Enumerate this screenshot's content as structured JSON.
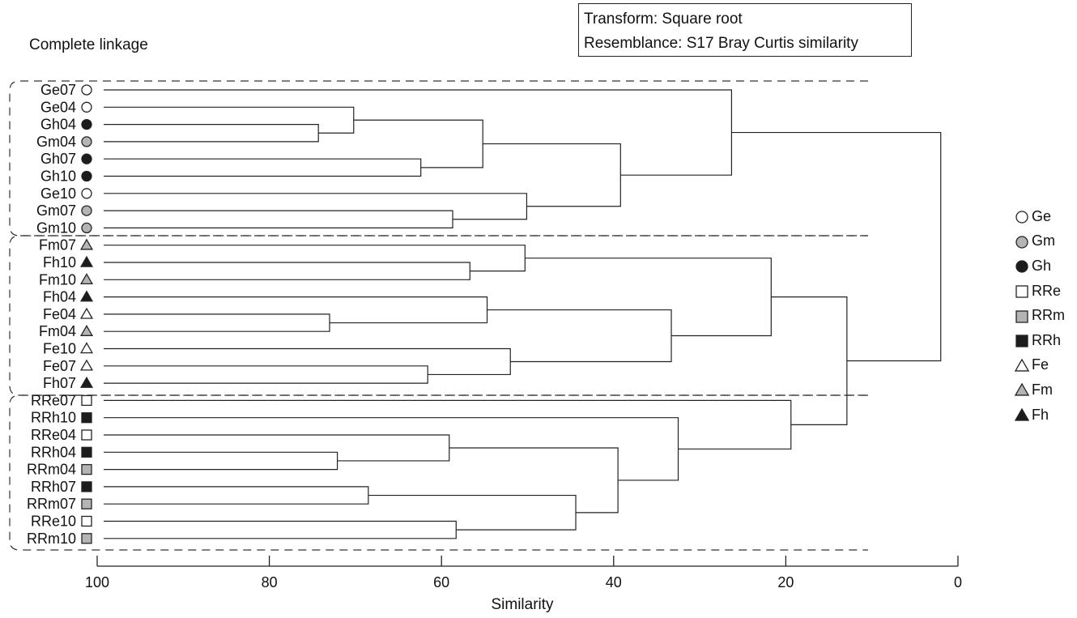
{
  "info_box": {
    "line1": "Transform: Square root",
    "line2": "Resemblance: S17 Bray Curtis similarity"
  },
  "method_label": "Complete linkage",
  "colors": {
    "open": "#ffffff",
    "gray": "#b4b4b4",
    "black": "#1c1c1c",
    "line": "#222222"
  },
  "legend": [
    {
      "label": "Ge",
      "shape": "circle",
      "fill": "open"
    },
    {
      "label": "Gm",
      "shape": "circle",
      "fill": "gray"
    },
    {
      "label": "Gh",
      "shape": "circle",
      "fill": "black"
    },
    {
      "label": "RRe",
      "shape": "square",
      "fill": "open"
    },
    {
      "label": "RRm",
      "shape": "square",
      "fill": "gray"
    },
    {
      "label": "RRh",
      "shape": "square",
      "fill": "black"
    },
    {
      "label": "Fe",
      "shape": "triangle",
      "fill": "open"
    },
    {
      "label": "Fm",
      "shape": "triangle",
      "fill": "gray"
    },
    {
      "label": "Fh",
      "shape": "triangle",
      "fill": "black"
    }
  ],
  "chart_data": {
    "type": "dendrogram",
    "xlabel": "Similarity",
    "xlim": [
      100,
      0
    ],
    "xticks": [
      100,
      80,
      60,
      40,
      20,
      0
    ],
    "leaves": [
      {
        "label": "Ge07",
        "shape": "circle",
        "fill": "open"
      },
      {
        "label": "Ge04",
        "shape": "circle",
        "fill": "open"
      },
      {
        "label": "Gh04",
        "shape": "circle",
        "fill": "black"
      },
      {
        "label": "Gm04",
        "shape": "circle",
        "fill": "gray"
      },
      {
        "label": "Gh07",
        "shape": "circle",
        "fill": "black"
      },
      {
        "label": "Gh10",
        "shape": "circle",
        "fill": "black"
      },
      {
        "label": "Ge10",
        "shape": "circle",
        "fill": "open"
      },
      {
        "label": "Gm07",
        "shape": "circle",
        "fill": "gray"
      },
      {
        "label": "Gm10",
        "shape": "circle",
        "fill": "gray"
      },
      {
        "label": "Fm07",
        "shape": "triangle",
        "fill": "gray"
      },
      {
        "label": "Fh10",
        "shape": "triangle",
        "fill": "black"
      },
      {
        "label": "Fm10",
        "shape": "triangle",
        "fill": "gray"
      },
      {
        "label": "Fh04",
        "shape": "triangle",
        "fill": "black"
      },
      {
        "label": "Fe04",
        "shape": "triangle",
        "fill": "open"
      },
      {
        "label": "Fm04",
        "shape": "triangle",
        "fill": "gray"
      },
      {
        "label": "Fe10",
        "shape": "triangle",
        "fill": "open"
      },
      {
        "label": "Fe07",
        "shape": "triangle",
        "fill": "open"
      },
      {
        "label": "Fh07",
        "shape": "triangle",
        "fill": "black"
      },
      {
        "label": "RRe07",
        "shape": "square",
        "fill": "open"
      },
      {
        "label": "RRh10",
        "shape": "square",
        "fill": "black"
      },
      {
        "label": "RRe04",
        "shape": "square",
        "fill": "open"
      },
      {
        "label": "RRh04",
        "shape": "square",
        "fill": "black"
      },
      {
        "label": "RRm04",
        "shape": "square",
        "fill": "gray"
      },
      {
        "label": "RRh07",
        "shape": "square",
        "fill": "black"
      },
      {
        "label": "RRm07",
        "shape": "square",
        "fill": "gray"
      },
      {
        "label": "RRe10",
        "shape": "square",
        "fill": "open"
      },
      {
        "label": "RRm10",
        "shape": "square",
        "fill": "gray"
      }
    ],
    "merges": [
      {
        "left": "Gh04",
        "right": "Gm04",
        "similarity": 74.3
      },
      {
        "left": "Ge04",
        "right": "m1",
        "similarity": 70.2
      },
      {
        "left": "Gh07",
        "right": "Gh10",
        "similarity": 62.4
      },
      {
        "left": "m2",
        "right": "m3",
        "similarity": 55.2
      },
      {
        "left": "Gm07",
        "right": "Gm10",
        "similarity": 58.7
      },
      {
        "left": "Ge10",
        "right": "m5",
        "similarity": 50.1
      },
      {
        "left": "m4",
        "right": "m6",
        "similarity": 39.2
      },
      {
        "left": "Ge07",
        "right": "m7",
        "similarity": 26.3
      },
      {
        "left": "Fh10",
        "right": "Fm10",
        "similarity": 56.7
      },
      {
        "left": "Fm07",
        "right": "m9",
        "similarity": 50.3
      },
      {
        "left": "Fe04",
        "right": "Fm04",
        "similarity": 73.0
      },
      {
        "left": "Fh04",
        "right": "m11",
        "similarity": 54.7
      },
      {
        "left": "Fe07",
        "right": "Fh07",
        "similarity": 61.6
      },
      {
        "left": "Fe10",
        "right": "m13",
        "similarity": 52.0
      },
      {
        "left": "m12",
        "right": "m14",
        "similarity": 33.3
      },
      {
        "left": "m10",
        "right": "m15",
        "similarity": 21.7
      },
      {
        "left": "RRh04",
        "right": "RRm04",
        "similarity": 72.1
      },
      {
        "left": "RRe04",
        "right": "m17",
        "similarity": 59.1
      },
      {
        "left": "RRh07",
        "right": "RRm07",
        "similarity": 68.5
      },
      {
        "left": "RRe10",
        "right": "RRm10",
        "similarity": 58.3
      },
      {
        "left": "m19",
        "right": "m20",
        "similarity": 44.4
      },
      {
        "left": "m18",
        "right": "m21",
        "similarity": 39.5
      },
      {
        "left": "RRh10",
        "right": "m22",
        "similarity": 32.5
      },
      {
        "left": "RRe07",
        "right": "m23",
        "similarity": 19.4
      },
      {
        "left": "m16",
        "right": "m24",
        "similarity": 12.9
      },
      {
        "left": "m8",
        "right": "m25",
        "similarity": 2.0
      }
    ]
  }
}
